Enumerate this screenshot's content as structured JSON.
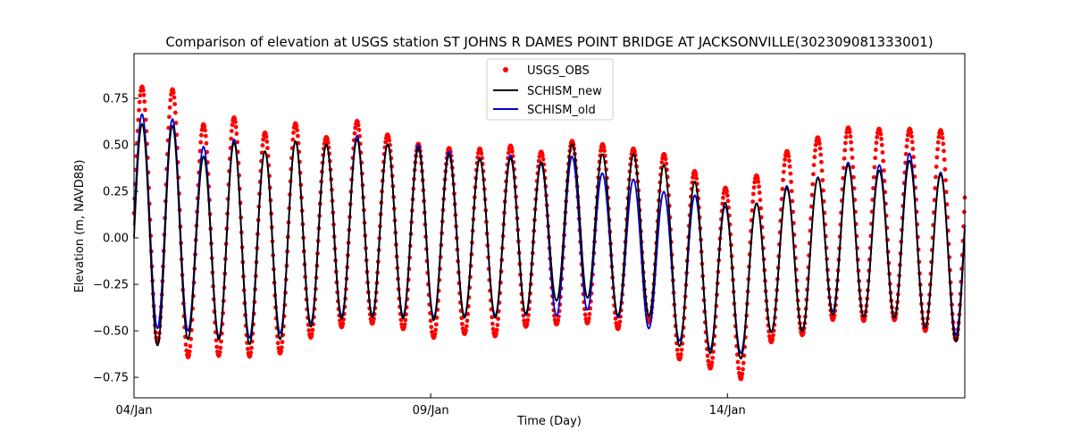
{
  "chart_data": {
    "type": "line",
    "title": "Comparison of elevation at USGS station ST JOHNS R DAMES POINT BRIDGE AT JACKSONVILLE(302309081333001)",
    "xlabel": "Time (Day)",
    "ylabel": "Elevation (m, NAVD88)",
    "xlim_days": [
      0,
      14
    ],
    "ylim": [
      -0.86,
      0.99
    ],
    "x_ticks": [
      {
        "day": 0,
        "label": "04/Jan"
      },
      {
        "day": 5,
        "label": "09/Jan"
      },
      {
        "day": 10,
        "label": "14/Jan"
      }
    ],
    "y_ticks": [
      {
        "value": -0.75,
        "label": "−0.75"
      },
      {
        "value": -0.5,
        "label": "−0.50"
      },
      {
        "value": -0.25,
        "label": "−0.25"
      },
      {
        "value": 0.0,
        "label": "0.00"
      },
      {
        "value": 0.25,
        "label": "0.25"
      },
      {
        "value": 0.5,
        "label": "0.50"
      },
      {
        "value": 0.75,
        "label": "0.75"
      }
    ],
    "tidal_period_hours": 12.42,
    "legend_position": "top-center",
    "series": [
      {
        "name": "USGS_OBS",
        "style": "markers",
        "color": "#ff0000",
        "high_tide_peaks": [
          0.8,
          0.85,
          0.6,
          0.66,
          0.56,
          0.62,
          0.54,
          0.63,
          0.55,
          0.5,
          0.48,
          0.48,
          0.5,
          0.45,
          0.55,
          0.48,
          0.48,
          0.43,
          0.3,
          0.24,
          0.44,
          0.5,
          0.6,
          0.58,
          0.6,
          0.55,
          0.67
        ],
        "low_tide_troughs": [
          -0.45,
          -0.6,
          -0.66,
          -0.62,
          -0.65,
          -0.6,
          -0.48,
          -0.48,
          -0.44,
          -0.56,
          -0.5,
          -0.55,
          -0.48,
          -0.47,
          -0.45,
          -0.5,
          -0.43,
          -0.65,
          -0.7,
          -0.76,
          -0.55,
          -0.52,
          -0.43,
          -0.45,
          -0.44,
          -0.52,
          -0.56
        ]
      },
      {
        "name": "SCHISM_new",
        "style": "line",
        "color": "#000000",
        "high_tide_peaks": [
          0.6,
          0.65,
          0.42,
          0.52,
          0.46,
          0.52,
          0.5,
          0.53,
          0.5,
          0.48,
          0.44,
          0.42,
          0.43,
          0.4,
          0.55,
          0.4,
          0.48,
          0.33,
          0.28,
          0.1,
          0.28,
          0.25,
          0.43,
          0.32,
          0.45,
          0.32,
          0.41
        ],
        "low_tide_troughs": [
          -0.52,
          -0.6,
          -0.52,
          -0.56,
          -0.58,
          -0.52,
          -0.44,
          -0.43,
          -0.42,
          -0.45,
          -0.43,
          -0.43,
          -0.43,
          -0.35,
          -0.3,
          -0.42,
          -0.4,
          -0.58,
          -0.62,
          -0.65,
          -0.5,
          -0.5,
          -0.4,
          -0.43,
          -0.43,
          -0.5,
          -0.58
        ]
      },
      {
        "name": "SCHISM_old",
        "style": "line",
        "color": "#0000cc",
        "high_tide_peaks": [
          0.66,
          0.68,
          0.48,
          0.54,
          0.46,
          0.52,
          0.5,
          0.55,
          0.5,
          0.5,
          0.46,
          0.42,
          0.45,
          0.38,
          0.46,
          0.29,
          0.33,
          0.19,
          0.26,
          0.08,
          0.3,
          0.25,
          0.44,
          0.34,
          0.5,
          0.33,
          0.42
        ],
        "low_tide_troughs": [
          -0.45,
          -0.5,
          -0.5,
          -0.55,
          -0.53,
          -0.5,
          -0.42,
          -0.42,
          -0.41,
          -0.43,
          -0.42,
          -0.42,
          -0.41,
          -0.43,
          -0.38,
          -0.42,
          -0.48,
          -0.55,
          -0.6,
          -0.62,
          -0.5,
          -0.5,
          -0.38,
          -0.43,
          -0.43,
          -0.5,
          -0.53
        ]
      }
    ]
  }
}
